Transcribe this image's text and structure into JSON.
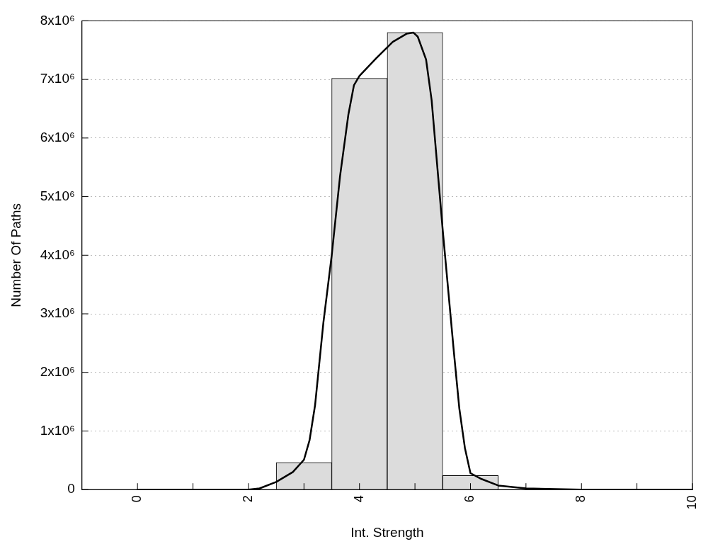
{
  "chart_data": {
    "type": "histogram",
    "xlabel": "Int. Strength",
    "ylabel": "Number Of Paths",
    "bins": [
      2.5,
      3.5,
      4.5,
      5.5,
      6.5
    ],
    "values": [
      460000,
      7020000,
      7800000,
      240000
    ],
    "color": "#dcdcdc",
    "series": [
      {
        "type": "line",
        "color": "#000000",
        "x": [
          0,
          1,
          2,
          2.2,
          2.5,
          2.8,
          3.0,
          3.1,
          3.2,
          3.35,
          3.5,
          3.65,
          3.8,
          3.9,
          4.0,
          4.3,
          4.6,
          4.85,
          4.97,
          5.05,
          5.2,
          5.3,
          5.5,
          5.7,
          5.8,
          5.9,
          6.0,
          6.2,
          6.5,
          7.0,
          8,
          9,
          10
        ],
        "values": [
          0,
          0,
          0,
          20000,
          130000,
          300000,
          510000,
          840000,
          1440000,
          2850000,
          4000000,
          5350000,
          6400000,
          6900000,
          7060000,
          7360000,
          7640000,
          7780000,
          7800000,
          7730000,
          7340000,
          6650000,
          4430000,
          2360000,
          1380000,
          710000,
          280000,
          180000,
          70000,
          20000,
          0,
          0,
          0
        ]
      }
    ],
    "xlim": [
      -1,
      10
    ],
    "xticks": [
      0,
      {
        "value": 1,
        "label": null
      },
      2,
      {
        "value": 3,
        "label": null
      },
      4,
      {
        "value": 5,
        "label": null
      },
      6,
      {
        "value": 7,
        "label": null
      },
      8,
      {
        "value": 9,
        "label": null
      },
      10
    ],
    "ylim": [
      0,
      8000000
    ],
    "yticks": [
      0,
      {
        "value": 1000000,
        "label": "1x10⁶"
      },
      {
        "value": 2000000,
        "label": "2x10⁶"
      },
      {
        "value": 3000000,
        "label": "3x10⁶"
      },
      {
        "value": 4000000,
        "label": "4x10⁶"
      },
      {
        "value": 5000000,
        "label": "5x10⁶"
      },
      {
        "value": 6000000,
        "label": "6x10⁶"
      },
      {
        "value": 7000000,
        "label": "7x10⁶"
      },
      {
        "value": 8000000,
        "label": "8x10⁶"
      }
    ],
    "grid": "y",
    "legend": false
  }
}
